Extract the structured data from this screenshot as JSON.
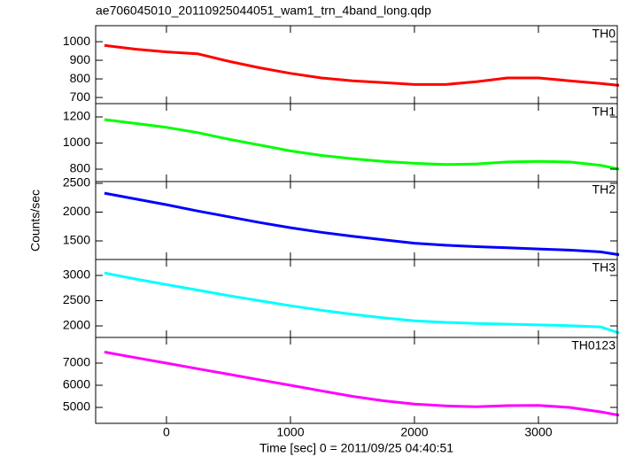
{
  "chart_data": [
    {
      "type": "line",
      "title": "ae706045010_20110925044051_wam1_trn_4band_long.qdp",
      "annotation": "TH0",
      "color": "#ff0000",
      "x": [
        -500,
        -250,
        0,
        250,
        500,
        750,
        1000,
        1250,
        1500,
        1750,
        2000,
        2250,
        2500,
        2750,
        3000,
        3250,
        3500,
        3650
      ],
      "values": [
        980,
        960,
        945,
        935,
        895,
        860,
        830,
        805,
        790,
        780,
        770,
        770,
        785,
        805,
        805,
        790,
        775,
        765
      ],
      "xlim": [
        -571,
        3636
      ],
      "xticks": [
        0,
        1000,
        2000,
        3000
      ],
      "ylim": [
        667,
        1086
      ],
      "yticks": [
        700,
        800,
        900,
        1000
      ]
    },
    {
      "type": "line",
      "annotation": "TH1",
      "color": "#00ff00",
      "x": [
        -500,
        -250,
        0,
        250,
        500,
        750,
        1000,
        1250,
        1500,
        1750,
        2000,
        2250,
        2500,
        2750,
        3000,
        3250,
        3500,
        3650
      ],
      "values": [
        1180,
        1150,
        1120,
        1080,
        1030,
        985,
        940,
        905,
        880,
        860,
        845,
        835,
        840,
        855,
        860,
        855,
        830,
        800
      ],
      "xlim": [
        -571,
        3636
      ],
      "xticks": [
        0,
        1000,
        2000,
        3000
      ],
      "ylim": [
        705,
        1302
      ],
      "yticks": [
        800,
        1000,
        1200
      ]
    },
    {
      "type": "line",
      "annotation": "TH2",
      "color": "#0000ff",
      "ylabel": "Counts/sec",
      "x": [
        -500,
        -250,
        0,
        250,
        500,
        750,
        1000,
        1250,
        1500,
        1750,
        2000,
        2250,
        2500,
        2750,
        3000,
        3250,
        3500,
        3650
      ],
      "values": [
        2330,
        2230,
        2130,
        2020,
        1920,
        1820,
        1730,
        1650,
        1580,
        1520,
        1460,
        1425,
        1400,
        1380,
        1360,
        1340,
        1310,
        1260
      ],
      "xlim": [
        -571,
        3636
      ],
      "xticks": [
        0,
        1000,
        2000,
        3000
      ],
      "ylim": [
        1177,
        2531
      ],
      "yticks": [
        1500,
        2000,
        2500
      ]
    },
    {
      "type": "line",
      "annotation": "TH3",
      "color": "#00ffff",
      "x": [
        -500,
        -250,
        0,
        250,
        500,
        750,
        1000,
        1250,
        1500,
        1750,
        2000,
        2250,
        2500,
        2750,
        3000,
        3250,
        3500,
        3650
      ],
      "values": [
        3050,
        2930,
        2820,
        2710,
        2600,
        2500,
        2400,
        2310,
        2230,
        2160,
        2100,
        2070,
        2050,
        2035,
        2020,
        2005,
        1980,
        1860
      ],
      "xlim": [
        -571,
        3636
      ],
      "xticks": [
        0,
        1000,
        2000,
        3000
      ],
      "ylim": [
        1772,
        3316
      ],
      "yticks": [
        2000,
        2500,
        3000
      ]
    },
    {
      "type": "line",
      "annotation": "TH0123",
      "color": "#ff00ff",
      "xlabel": "Time [sec] 0 = 2011/09/25 04:40:51",
      "x": [
        -500,
        -250,
        0,
        250,
        500,
        750,
        1000,
        1250,
        1500,
        1750,
        2000,
        2250,
        2500,
        2750,
        3000,
        3250,
        3500,
        3650
      ],
      "values": [
        7500,
        7250,
        7000,
        6750,
        6500,
        6250,
        6000,
        5750,
        5500,
        5300,
        5150,
        5070,
        5030,
        5080,
        5090,
        5000,
        4800,
        4650
      ],
      "xlim": [
        -571,
        3636
      ],
      "xticks": [
        0,
        1000,
        2000,
        3000
      ],
      "ylim": [
        4280,
        8160
      ],
      "yticks": [
        5000,
        6000,
        7000
      ]
    }
  ]
}
